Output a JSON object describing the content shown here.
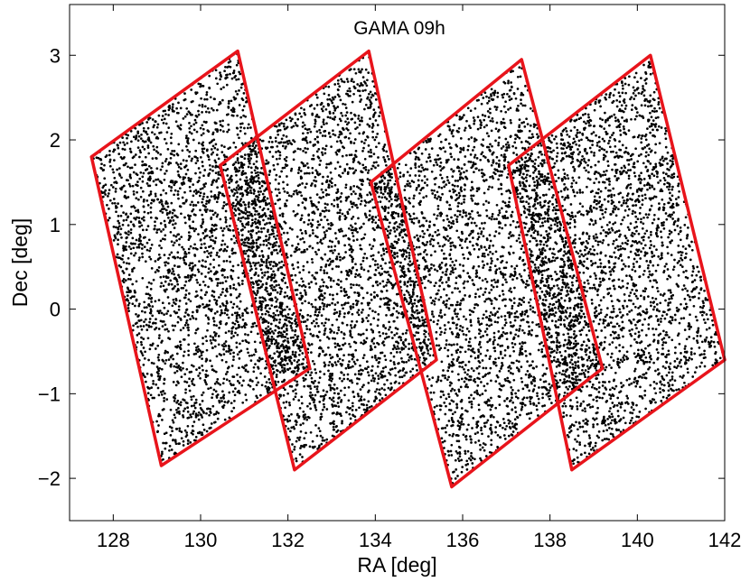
{
  "chart_data": {
    "type": "scatter",
    "title": "GAMA 09h",
    "xlabel": "RA [deg]",
    "ylabel": "Dec [deg]",
    "xlim": [
      127,
      142
    ],
    "ylim": [
      -2.5,
      3.6
    ],
    "xticks": [
      128,
      130,
      132,
      134,
      136,
      138,
      140,
      142
    ],
    "xtick_labels": [
      "128",
      "130",
      "132",
      "134",
      "136",
      "138",
      "140",
      "142"
    ],
    "yticks": [
      -2,
      -1,
      0,
      1,
      2,
      3
    ],
    "ytick_labels": [
      "−2",
      "−1",
      "0",
      "1",
      "2",
      "3"
    ],
    "grid": false,
    "point_color": "#000000",
    "outline_color": "#e8141b",
    "fields": [
      {
        "corners": [
          [
            127.5,
            1.8
          ],
          [
            130.85,
            3.05
          ],
          [
            132.5,
            -0.7
          ],
          [
            129.1,
            -1.85
          ]
        ]
      },
      {
        "corners": [
          [
            130.45,
            1.7
          ],
          [
            133.85,
            3.05
          ],
          [
            135.4,
            -0.6
          ],
          [
            132.15,
            -1.9
          ]
        ]
      },
      {
        "corners": [
          [
            133.9,
            1.5
          ],
          [
            137.35,
            2.95
          ],
          [
            139.2,
            -0.7
          ],
          [
            135.75,
            -2.1
          ]
        ]
      },
      {
        "corners": [
          [
            137.05,
            1.7
          ],
          [
            140.3,
            3.0
          ],
          [
            142.0,
            -0.6
          ],
          [
            138.5,
            -1.9
          ]
        ]
      }
    ]
  }
}
